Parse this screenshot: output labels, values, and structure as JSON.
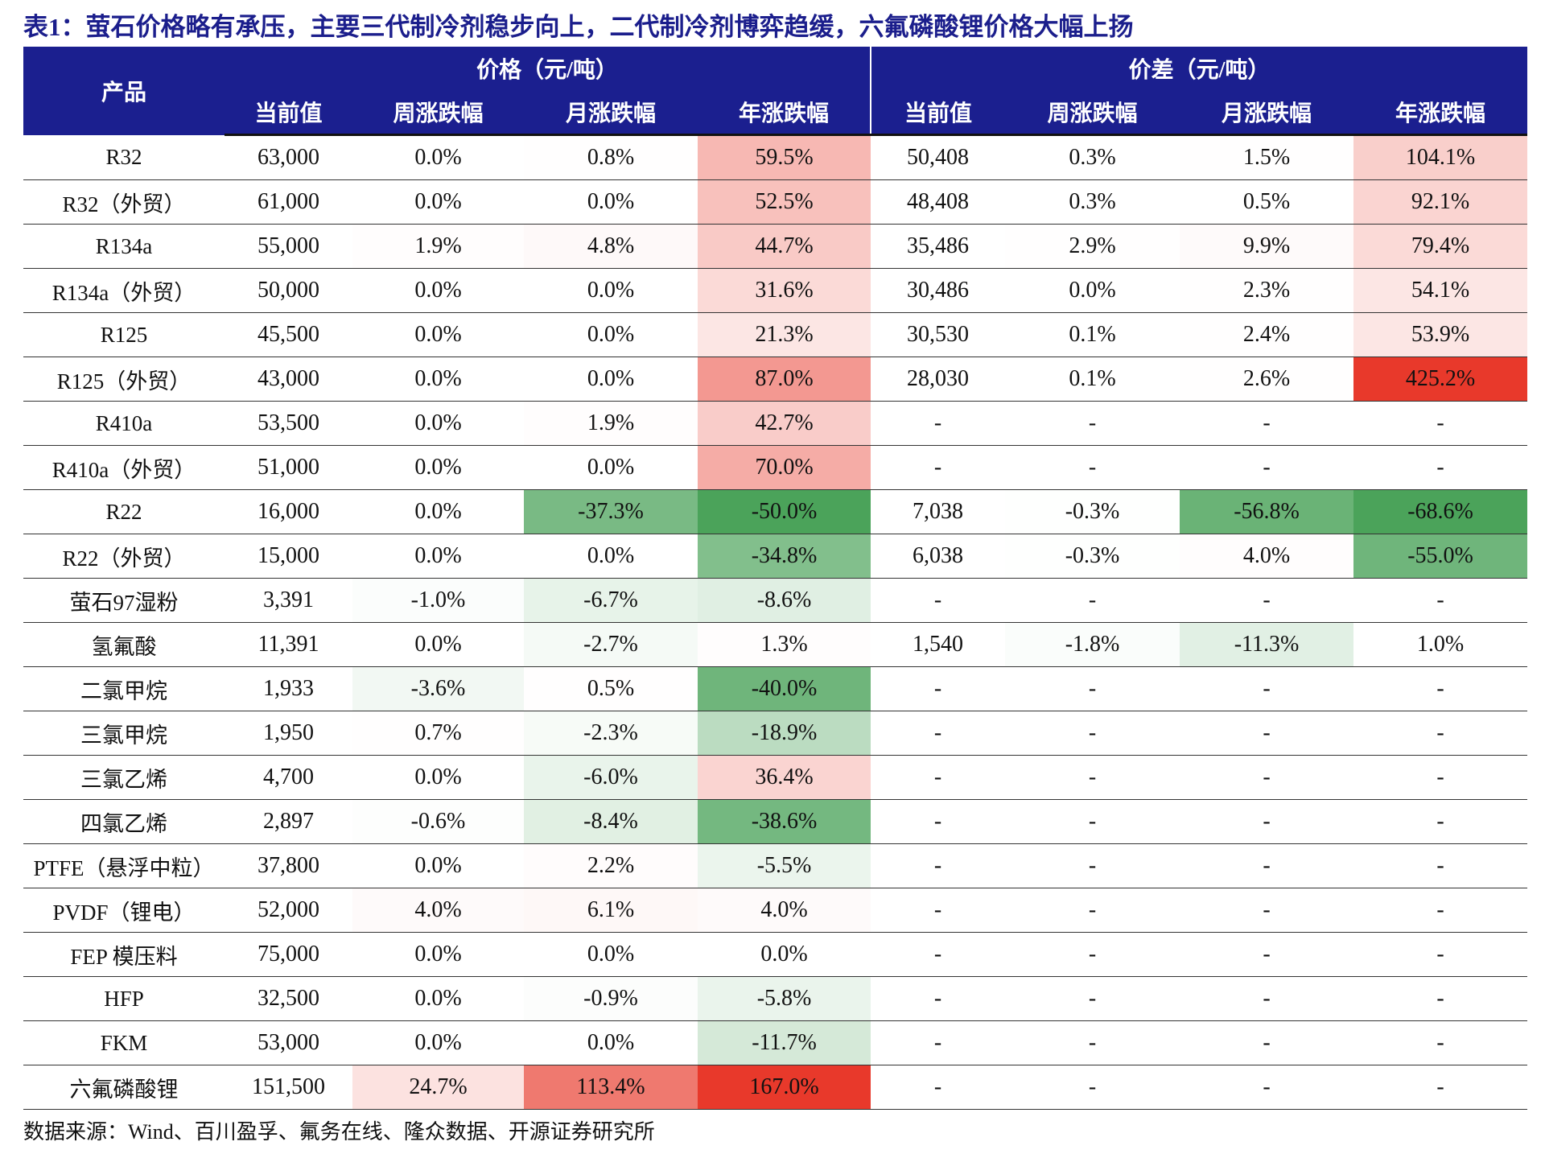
{
  "title": "表1：萤石价格略有承压，主要三代制冷剂稳步向上，二代制冷剂博弈趋缓，六氟磷酸锂价格大幅上扬",
  "table": {
    "product_header": "产品",
    "group_headers": [
      "价格（元/吨）",
      "价差（元/吨）"
    ],
    "sub_headers": [
      "当前值",
      "周涨跌幅",
      "月涨跌幅",
      "年涨跌幅",
      "当前值",
      "周涨跌幅",
      "月涨跌幅",
      "年涨跌幅"
    ],
    "rows": [
      [
        "R32",
        "63,000",
        "0.0%",
        "0.8%",
        "59.5%",
        "50,408",
        "0.3%",
        "1.5%",
        "104.1%"
      ],
      [
        "R32（外贸）",
        "61,000",
        "0.0%",
        "0.0%",
        "52.5%",
        "48,408",
        "0.3%",
        "0.5%",
        "92.1%"
      ],
      [
        "R134a",
        "55,000",
        "1.9%",
        "4.8%",
        "44.7%",
        "35,486",
        "2.9%",
        "9.9%",
        "79.4%"
      ],
      [
        "R134a（外贸）",
        "50,000",
        "0.0%",
        "0.0%",
        "31.6%",
        "30,486",
        "0.0%",
        "2.3%",
        "54.1%"
      ],
      [
        "R125",
        "45,500",
        "0.0%",
        "0.0%",
        "21.3%",
        "30,530",
        "0.1%",
        "2.4%",
        "53.9%"
      ],
      [
        "R125（外贸）",
        "43,000",
        "0.0%",
        "0.0%",
        "87.0%",
        "28,030",
        "0.1%",
        "2.6%",
        "425.2%"
      ],
      [
        "R410a",
        "53,500",
        "0.0%",
        "1.9%",
        "42.7%",
        "-",
        "-",
        "-",
        "-"
      ],
      [
        "R410a（外贸）",
        "51,000",
        "0.0%",
        "0.0%",
        "70.0%",
        "-",
        "-",
        "-",
        "-"
      ],
      [
        "R22",
        "16,000",
        "0.0%",
        "-37.3%",
        "-50.0%",
        "7,038",
        "-0.3%",
        "-56.8%",
        "-68.6%"
      ],
      [
        "R22（外贸）",
        "15,000",
        "0.0%",
        "0.0%",
        "-34.8%",
        "6,038",
        "-0.3%",
        "4.0%",
        "-55.0%"
      ],
      [
        "萤石97湿粉",
        "3,391",
        "-1.0%",
        "-6.7%",
        "-8.6%",
        "-",
        "-",
        "-",
        "-"
      ],
      [
        "氢氟酸",
        "11,391",
        "0.0%",
        "-2.7%",
        "1.3%",
        "1,540",
        "-1.8%",
        "-11.3%",
        "1.0%"
      ],
      [
        "二氯甲烷",
        "1,933",
        "-3.6%",
        "0.5%",
        "-40.0%",
        "-",
        "-",
        "-",
        "-"
      ],
      [
        "三氯甲烷",
        "1,950",
        "0.7%",
        "-2.3%",
        "-18.9%",
        "-",
        "-",
        "-",
        "-"
      ],
      [
        "三氯乙烯",
        "4,700",
        "0.0%",
        "-6.0%",
        "36.4%",
        "-",
        "-",
        "-",
        "-"
      ],
      [
        "四氯乙烯",
        "2,897",
        "-0.6%",
        "-8.4%",
        "-38.6%",
        "-",
        "-",
        "-",
        "-"
      ],
      [
        "PTFE（悬浮中粒）",
        "37,800",
        "0.0%",
        "2.2%",
        "-5.5%",
        "-",
        "-",
        "-",
        "-"
      ],
      [
        "PVDF（锂电）",
        "52,000",
        "4.0%",
        "6.1%",
        "4.0%",
        "-",
        "-",
        "-",
        "-"
      ],
      [
        "FEP 模压料",
        "75,000",
        "0.0%",
        "0.0%",
        "0.0%",
        "-",
        "-",
        "-",
        "-"
      ],
      [
        "HFP",
        "32,500",
        "0.0%",
        "-0.9%",
        "-5.8%",
        "-",
        "-",
        "-",
        "-"
      ],
      [
        "FKM",
        "53,000",
        "0.0%",
        "0.0%",
        "-11.7%",
        "-",
        "-",
        "-",
        "-"
      ],
      [
        "六氟磷酸锂",
        "151,500",
        "24.7%",
        "113.4%",
        "167.0%",
        "-",
        "-",
        "-",
        "-"
      ]
    ]
  },
  "source": "数据来源：Wind、百川盈孚、氟务在线、隆众数据、开源证券研究所"
}
